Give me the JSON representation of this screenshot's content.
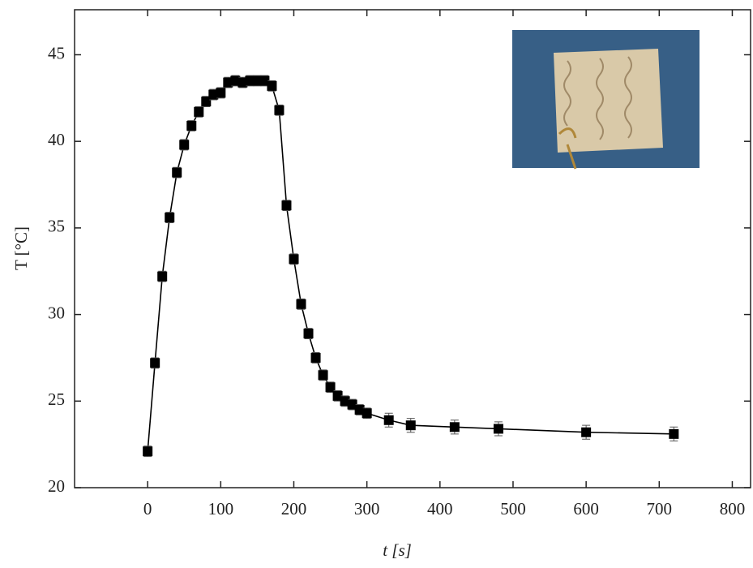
{
  "chart_data": {
    "type": "line",
    "x_label": "t [s]",
    "y_label": "T [°C]",
    "x": [
      0,
      10,
      20,
      30,
      40,
      50,
      60,
      70,
      80,
      90,
      100,
      110,
      120,
      130,
      140,
      150,
      160,
      170,
      180,
      190,
      200,
      210,
      220,
      230,
      240,
      250,
      260,
      270,
      280,
      290,
      300,
      330,
      360,
      420,
      480,
      600,
      720
    ],
    "series": [
      {
        "color": "#000000",
        "values": [
          22.1,
          27.2,
          32.2,
          35.6,
          38.2,
          39.8,
          40.9,
          41.7,
          42.3,
          42.7,
          42.8,
          43.4,
          43.5,
          43.4,
          43.5,
          43.5,
          43.5,
          43.2,
          41.8,
          36.3,
          33.2,
          30.6,
          28.9,
          27.5,
          26.5,
          25.8,
          25.3,
          25.0,
          24.8,
          24.5,
          24.3,
          23.9,
          23.6,
          23.5,
          23.4,
          23.2,
          23.1
        ],
        "errors": [
          0.3,
          0.3,
          0.3,
          0.3,
          0.3,
          0.3,
          0.3,
          0.3,
          0.3,
          0.3,
          0.3,
          0.3,
          0.3,
          0.3,
          0.3,
          0.3,
          0.3,
          0.3,
          0.3,
          0.3,
          0.3,
          0.3,
          0.3,
          0.3,
          0.3,
          0.3,
          0.3,
          0.3,
          0.3,
          0.3,
          0.3,
          0.4,
          0.4,
          0.4,
          0.4,
          0.4,
          0.4
        ]
      }
    ],
    "xlim": [
      -100,
      825
    ],
    "ylim": [
      20,
      47.6
    ],
    "xticks": [
      0,
      100,
      200,
      300,
      400,
      500,
      600,
      700,
      800
    ],
    "yticks": [
      20,
      25,
      30,
      35,
      40,
      45
    ]
  }
}
